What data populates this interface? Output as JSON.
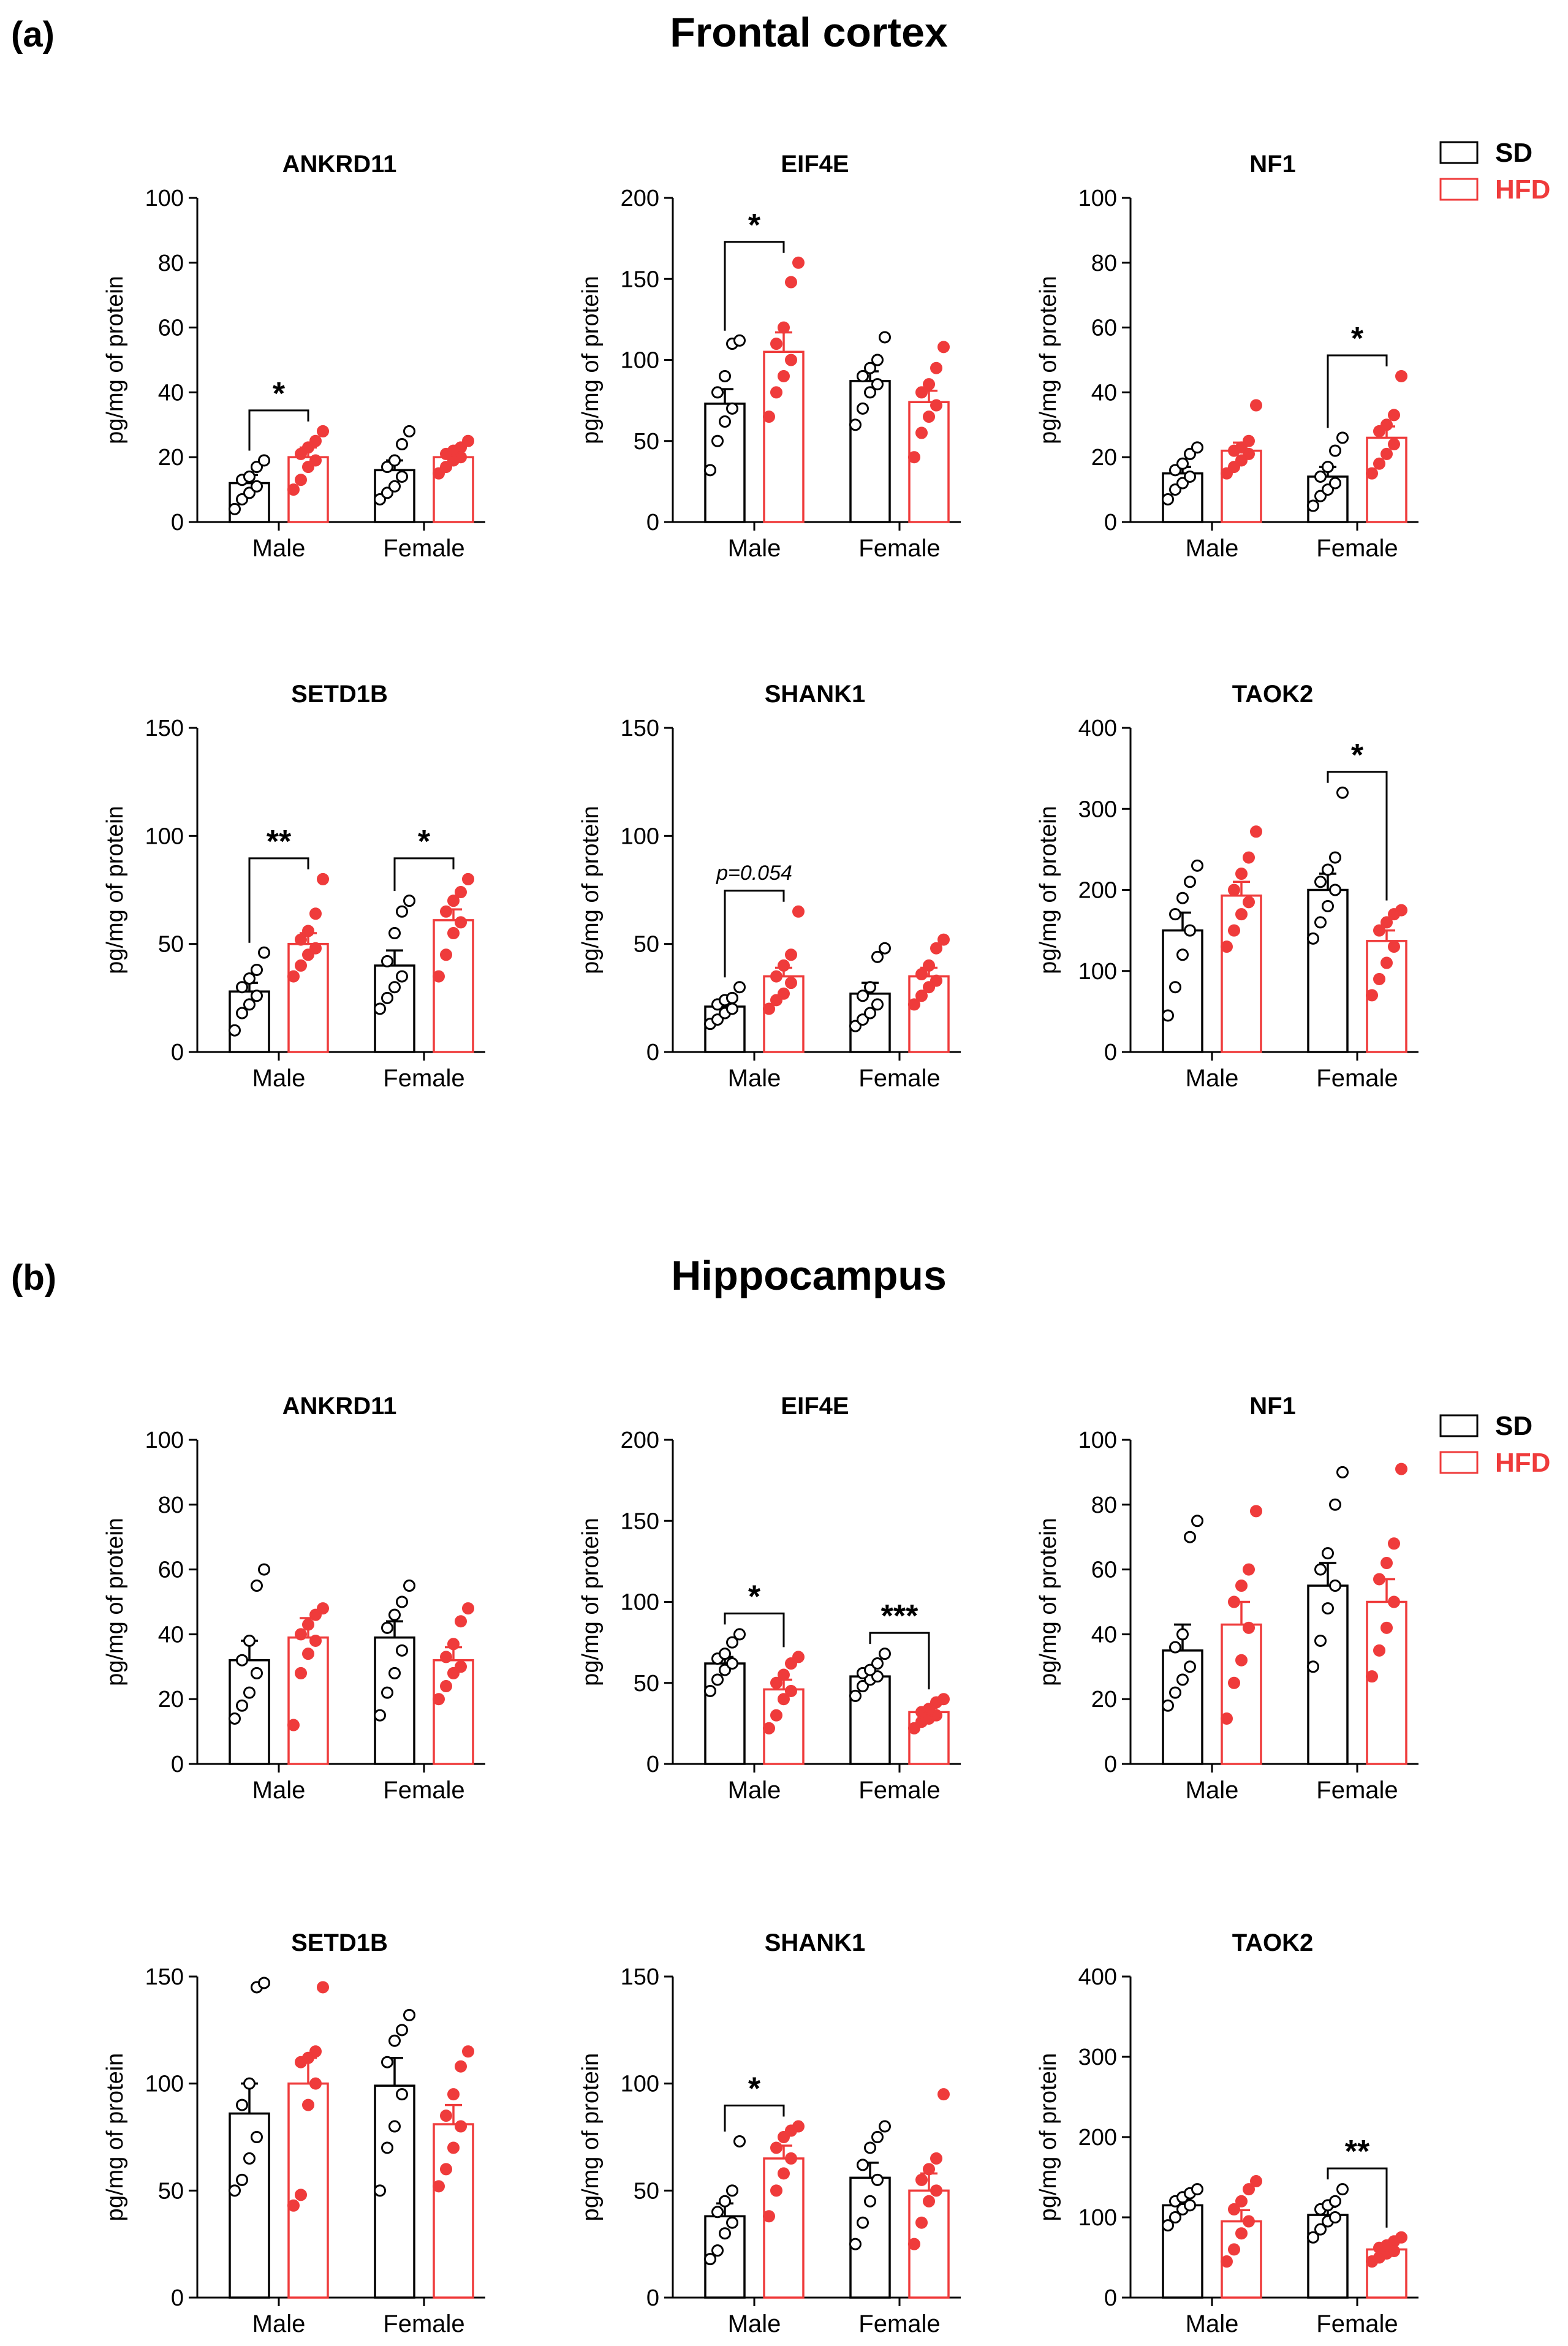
{
  "panels": [
    {
      "letter": "(a)",
      "title": "Frontal cortex"
    },
    {
      "letter": "(b)",
      "title": "Hippocampus"
    }
  ],
  "legend": [
    {
      "label": "SD",
      "color": "#000000"
    },
    {
      "label": "HFD",
      "color": "#ef3b3b"
    }
  ],
  "colors": {
    "SD": "#000000",
    "HFD": "#ef3b3b"
  },
  "chart_data": [
    {
      "type": "bar",
      "panel": "(a)",
      "title": "ANKRD11",
      "ylabel": "pg/mg of protein",
      "ylim": [
        0,
        100
      ],
      "yticks": [
        0,
        20,
        40,
        60,
        80,
        100
      ],
      "categories": [
        "Male",
        "Female"
      ],
      "series": [
        {
          "name": "SD",
          "means": [
            12,
            16
          ],
          "sem": [
            2.5,
            3
          ],
          "points": [
            [
              4,
              7,
              9,
              11,
              13,
              14,
              17,
              19
            ],
            [
              7,
              9,
              11,
              14,
              17,
              19,
              24,
              28
            ]
          ]
        },
        {
          "name": "HFD",
          "means": [
            20,
            20
          ],
          "sem": [
            3,
            1.5
          ],
          "points": [
            [
              10,
              13,
              17,
              19,
              21,
              23,
              25,
              28
            ],
            [
              15,
              17,
              19,
              20,
              21,
              22,
              23,
              25
            ]
          ]
        }
      ],
      "significance": [
        {
          "category": "Male",
          "label": "*"
        }
      ]
    },
    {
      "type": "bar",
      "panel": "(a)",
      "title": "EIF4E",
      "ylabel": "pg/mg of protein",
      "ylim": [
        0,
        200
      ],
      "yticks": [
        0,
        50,
        100,
        150,
        200
      ],
      "categories": [
        "Male",
        "Female"
      ],
      "series": [
        {
          "name": "SD",
          "means": [
            73,
            87
          ],
          "sem": [
            9,
            6
          ],
          "points": [
            [
              32,
              50,
              62,
              70,
              80,
              90,
              110,
              112
            ],
            [
              60,
              70,
              80,
              85,
              90,
              95,
              100,
              114
            ]
          ]
        },
        {
          "name": "HFD",
          "means": [
            105,
            74
          ],
          "sem": [
            12,
            7
          ],
          "points": [
            [
              65,
              80,
              90,
              100,
              110,
              120,
              148,
              160
            ],
            [
              40,
              55,
              65,
              72,
              80,
              85,
              95,
              108
            ]
          ]
        }
      ],
      "significance": [
        {
          "category": "Male",
          "label": "*"
        }
      ]
    },
    {
      "type": "bar",
      "panel": "(a)",
      "title": "NF1",
      "ylabel": "pg/mg of protein",
      "ylim": [
        0,
        100
      ],
      "yticks": [
        0,
        20,
        40,
        60,
        80,
        100
      ],
      "categories": [
        "Male",
        "Female"
      ],
      "series": [
        {
          "name": "SD",
          "means": [
            15,
            14
          ],
          "sem": [
            2,
            3
          ],
          "points": [
            [
              7,
              10,
              12,
              14,
              16,
              18,
              21,
              23
            ],
            [
              5,
              8,
              10,
              12,
              14,
              17,
              22,
              26
            ]
          ]
        },
        {
          "name": "HFD",
          "means": [
            22,
            26
          ],
          "sem": [
            2.5,
            3.5
          ],
          "points": [
            [
              15,
              17,
              19,
              21,
              22,
              23,
              25,
              36
            ],
            [
              15,
              18,
              21,
              24,
              28,
              30,
              33,
              45
            ]
          ]
        }
      ],
      "significance": [
        {
          "category": "Female",
          "label": "*"
        }
      ]
    },
    {
      "type": "bar",
      "panel": "(a)",
      "title": "SETD1B",
      "ylabel": "pg/mg of protein",
      "ylim": [
        0,
        150
      ],
      "yticks": [
        0,
        50,
        100,
        150
      ],
      "categories": [
        "Male",
        "Female"
      ],
      "series": [
        {
          "name": "SD",
          "means": [
            28,
            40
          ],
          "sem": [
            4,
            7
          ],
          "points": [
            [
              10,
              18,
              22,
              26,
              30,
              34,
              38,
              46
            ],
            [
              20,
              25,
              30,
              35,
              42,
              55,
              65,
              70
            ]
          ]
        },
        {
          "name": "HFD",
          "means": [
            50,
            61
          ],
          "sem": [
            5,
            5
          ],
          "points": [
            [
              35,
              40,
              45,
              48,
              52,
              56,
              64,
              80
            ],
            [
              35,
              45,
              55,
              60,
              65,
              70,
              74,
              80
            ]
          ]
        }
      ],
      "significance": [
        {
          "category": "Male",
          "label": "**"
        },
        {
          "category": "Female",
          "label": "*"
        }
      ]
    },
    {
      "type": "bar",
      "panel": "(a)",
      "title": "SHANK1",
      "ylabel": "pg/mg of protein",
      "ylim": [
        0,
        150
      ],
      "yticks": [
        0,
        50,
        100,
        150
      ],
      "categories": [
        "Male",
        "Female"
      ],
      "series": [
        {
          "name": "SD",
          "means": [
            21,
            27
          ],
          "sem": [
            2,
            5
          ],
          "points": [
            [
              13,
              15,
              18,
              20,
              22,
              24,
              25,
              30
            ],
            [
              12,
              15,
              18,
              22,
              26,
              30,
              44,
              48
            ]
          ]
        },
        {
          "name": "HFD",
          "means": [
            35,
            35
          ],
          "sem": [
            4,
            4
          ],
          "points": [
            [
              20,
              24,
              27,
              32,
              35,
              40,
              45,
              65
            ],
            [
              22,
              26,
              30,
              33,
              36,
              40,
              48,
              52
            ]
          ]
        }
      ],
      "significance": [
        {
          "category": "Male",
          "label": "p=0.054"
        }
      ]
    },
    {
      "type": "bar",
      "panel": "(a)",
      "title": "TAOK2",
      "ylabel": "pg/mg of protein",
      "ylim": [
        0,
        400
      ],
      "yticks": [
        0,
        100,
        200,
        300,
        400
      ],
      "categories": [
        "Male",
        "Female"
      ],
      "series": [
        {
          "name": "SD",
          "means": [
            150,
            200
          ],
          "sem": [
            22,
            20
          ],
          "points": [
            [
              45,
              80,
              120,
              150,
              170,
              190,
              210,
              230
            ],
            [
              140,
              160,
              180,
              200,
              210,
              225,
              240,
              320
            ]
          ]
        },
        {
          "name": "HFD",
          "means": [
            193,
            137
          ],
          "sem": [
            17,
            13
          ],
          "points": [
            [
              130,
              150,
              170,
              185,
              200,
              220,
              240,
              272
            ],
            [
              70,
              90,
              110,
              130,
              150,
              160,
              170,
              175
            ]
          ]
        }
      ],
      "significance": [
        {
          "category": "Female",
          "label": "*"
        }
      ]
    },
    {
      "type": "bar",
      "panel": "(b)",
      "title": "ANKRD11",
      "ylabel": "pg/mg of protein",
      "ylim": [
        0,
        100
      ],
      "yticks": [
        0,
        20,
        40,
        60,
        80,
        100
      ],
      "categories": [
        "Male",
        "Female"
      ],
      "series": [
        {
          "name": "SD",
          "means": [
            32,
            39
          ],
          "sem": [
            6,
            5
          ],
          "points": [
            [
              14,
              18,
              22,
              28,
              32,
              38,
              55,
              60
            ],
            [
              15,
              22,
              28,
              35,
              42,
              46,
              50,
              55
            ]
          ]
        },
        {
          "name": "HFD",
          "means": [
            39,
            32
          ],
          "sem": [
            6,
            4
          ],
          "points": [
            [
              12,
              28,
              34,
              38,
              40,
              43,
              46,
              48
            ],
            [
              20,
              24,
              28,
              30,
              33,
              37,
              44,
              48
            ]
          ]
        }
      ],
      "significance": []
    },
    {
      "type": "bar",
      "panel": "(b)",
      "title": "EIF4E",
      "ylabel": "pg/mg of protein",
      "ylim": [
        0,
        200
      ],
      "yticks": [
        0,
        50,
        100,
        150,
        200
      ],
      "categories": [
        "Male",
        "Female"
      ],
      "series": [
        {
          "name": "SD",
          "means": [
            62,
            54
          ],
          "sem": [
            4,
            3
          ],
          "points": [
            [
              45,
              52,
              58,
              62,
              65,
              68,
              75,
              80
            ],
            [
              42,
              48,
              52,
              54,
              56,
              58,
              62,
              68
            ]
          ]
        },
        {
          "name": "HFD",
          "means": [
            46,
            32
          ],
          "sem": [
            6,
            2.5
          ],
          "points": [
            [
              22,
              30,
              40,
              45,
              50,
              55,
              62,
              66
            ],
            [
              22,
              26,
              28,
              30,
              32,
              34,
              38,
              40
            ]
          ]
        }
      ],
      "significance": [
        {
          "category": "Male",
          "label": "*"
        },
        {
          "category": "Female",
          "label": "***"
        }
      ]
    },
    {
      "type": "bar",
      "panel": "(b)",
      "title": "NF1",
      "ylabel": "pg/mg of protein",
      "ylim": [
        0,
        100
      ],
      "yticks": [
        0,
        20,
        40,
        60,
        80,
        100
      ],
      "categories": [
        "Male",
        "Female"
      ],
      "series": [
        {
          "name": "SD",
          "means": [
            35,
            55
          ],
          "sem": [
            8,
            7
          ],
          "points": [
            [
              18,
              22,
              26,
              30,
              36,
              40,
              70,
              75
            ],
            [
              30,
              38,
              48,
              55,
              60,
              65,
              80,
              90
            ]
          ]
        },
        {
          "name": "HFD",
          "means": [
            43,
            50
          ],
          "sem": [
            7,
            7
          ],
          "points": [
            [
              14,
              25,
              32,
              42,
              50,
              55,
              60,
              78
            ],
            [
              27,
              35,
              42,
              50,
              57,
              62,
              68,
              91
            ]
          ]
        }
      ],
      "significance": []
    },
    {
      "type": "bar",
      "panel": "(b)",
      "title": "SETD1B",
      "ylabel": "pg/mg of protein",
      "ylim": [
        0,
        150
      ],
      "yticks": [
        0,
        50,
        100,
        150
      ],
      "categories": [
        "Male",
        "Female"
      ],
      "series": [
        {
          "name": "SD",
          "means": [
            86,
            99
          ],
          "sem": [
            14,
            13
          ],
          "points": [
            [
              50,
              55,
              65,
              75,
              90,
              100,
              145,
              147
            ],
            [
              50,
              70,
              80,
              95,
              110,
              120,
              125,
              132
            ]
          ]
        },
        {
          "name": "HFD",
          "means": [
            100,
            81
          ],
          "sem": [
            12,
            9
          ],
          "points": [
            [
              43,
              48,
              90,
              100,
              110,
              112,
              115,
              145
            ],
            [
              52,
              60,
              70,
              80,
              85,
              95,
              108,
              115
            ]
          ]
        }
      ],
      "significance": []
    },
    {
      "type": "bar",
      "panel": "(b)",
      "title": "SHANK1",
      "ylabel": "pg/mg of protein",
      "ylim": [
        0,
        150
      ],
      "yticks": [
        0,
        50,
        100,
        150
      ],
      "categories": [
        "Male",
        "Female"
      ],
      "series": [
        {
          "name": "SD",
          "means": [
            38,
            56
          ],
          "sem": [
            6,
            7
          ],
          "points": [
            [
              18,
              22,
              30,
              35,
              40,
              45,
              50,
              73
            ],
            [
              25,
              35,
              45,
              55,
              62,
              70,
              75,
              80
            ]
          ]
        },
        {
          "name": "HFD",
          "means": [
            65,
            50
          ],
          "sem": [
            6,
            8
          ],
          "points": [
            [
              38,
              50,
              58,
              65,
              70,
              75,
              78,
              80
            ],
            [
              25,
              35,
              45,
              50,
              55,
              60,
              65,
              95
            ]
          ]
        }
      ],
      "significance": [
        {
          "category": "Male",
          "label": "*"
        }
      ]
    },
    {
      "type": "bar",
      "panel": "(b)",
      "title": "TAOK2",
      "ylabel": "pg/mg of protein",
      "ylim": [
        0,
        400
      ],
      "yticks": [
        0,
        100,
        200,
        300,
        400
      ],
      "categories": [
        "Male",
        "Female"
      ],
      "series": [
        {
          "name": "SD",
          "means": [
            115,
            103
          ],
          "sem": [
            7,
            10
          ],
          "points": [
            [
              90,
              100,
              110,
              115,
              120,
              125,
              130,
              135
            ],
            [
              75,
              85,
              95,
              100,
              110,
              115,
              120,
              135
            ]
          ]
        },
        {
          "name": "HFD",
          "means": [
            95,
            60
          ],
          "sem": [
            14,
            5
          ],
          "points": [
            [
              45,
              60,
              80,
              95,
              110,
              120,
              135,
              145
            ],
            [
              45,
              50,
              55,
              58,
              62,
              65,
              70,
              75
            ]
          ]
        }
      ],
      "significance": [
        {
          "category": "Female",
          "label": "**"
        }
      ]
    }
  ]
}
